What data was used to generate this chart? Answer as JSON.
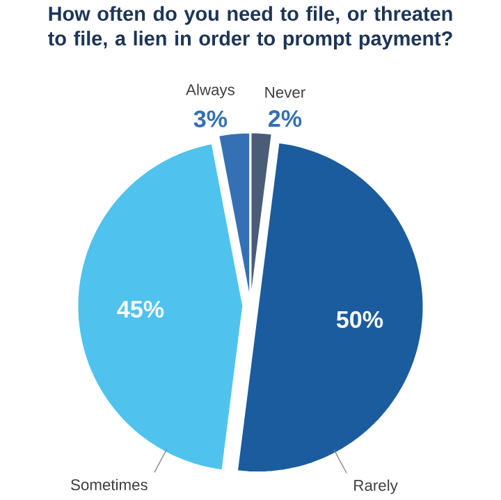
{
  "chart_data": {
    "type": "pie",
    "title": "How often do you need to file, or threaten to file, a lien in order to prompt payment?",
    "categories": [
      "Never",
      "Rarely",
      "Sometimes",
      "Always"
    ],
    "values": [
      2,
      50,
      45,
      3
    ],
    "colors": [
      "#4a5d78",
      "#1b5c9e",
      "#4fc3ee",
      "#3570b5"
    ],
    "value_labels": [
      "2%",
      "50%",
      "45%",
      "3%"
    ]
  }
}
